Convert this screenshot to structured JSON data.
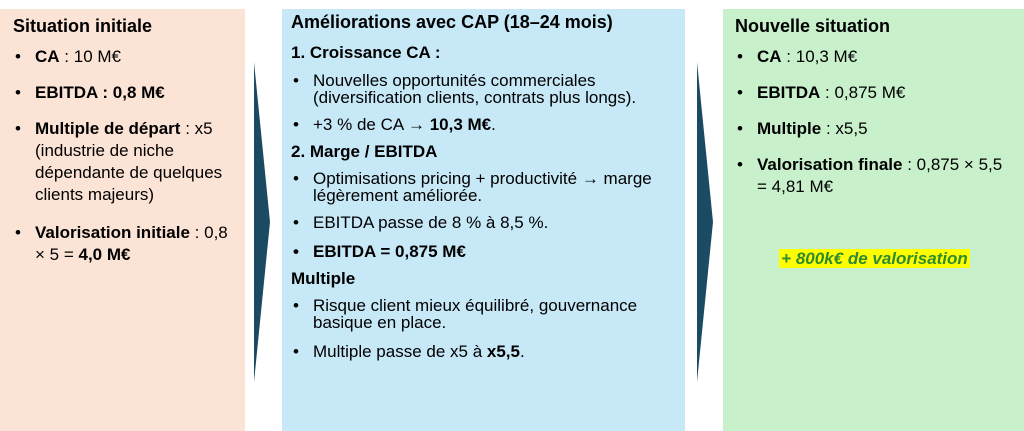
{
  "left": {
    "title": "Situation initiale",
    "items": [
      {
        "label": "CA",
        "sep": " : ",
        "value": "10 M€",
        "value_bold": false
      },
      {
        "label": "EBITDA  :",
        "sep": " ",
        "value": "0,8 M€",
        "value_bold": true
      },
      {
        "label": "Multiple de départ",
        "sep": " : ",
        "value": "x5 (industrie de niche dépendante de quelques clients majeurs)",
        "value_bold": false
      },
      {
        "label": "Valorisation initiale",
        "sep": " : ",
        "value": "0,8 × 5 =",
        "value2": "4,0 M€"
      }
    ]
  },
  "middle": {
    "title": "Améliorations avec CAP (18–24 mois)",
    "section1": {
      "title": "1. Croissance CA :",
      "item1": "Nouvelles opportunités commerciales (diversification clients, contrats plus longs).",
      "item2_prefix": "+3 % de CA → ",
      "item2_bold": "10,3 M€",
      "item2_suffix": "."
    },
    "section2": {
      "title": "2. Marge / EBITDA",
      "item1": "Optimisations pricing + productivité → marge légèrement améliorée.",
      "item2": "EBITDA passe de 8 % à 8,5 %.",
      "item3": "EBITDA = 0,875 M€"
    },
    "section3": {
      "title": "Multiple",
      "item1": "Risque client mieux équilibré, gouvernance basique en place.",
      "item2_prefix": "Multiple passe de x5 à ",
      "item2_bold": "x5,5",
      "item2_suffix": "."
    }
  },
  "right": {
    "title": "Nouvelle situation",
    "items": [
      {
        "label": "CA",
        "sep": " : ",
        "value": "10,3 M€"
      },
      {
        "label": "EBITDA",
        "sep": " : ",
        "value": "0,875 M€"
      },
      {
        "label": "Multiple",
        "sep": " : ",
        "value": "x5,5"
      },
      {
        "label": "Valorisation finale",
        "sep": " : ",
        "value": "0,875 × 5,5 = 4,81 M€"
      }
    ],
    "highlight": "+ 800k€ de valorisation"
  },
  "colors": {
    "left_bg": "#fbe3d6",
    "middle_bg": "#c6e8f7",
    "right_bg": "#c7f0cb",
    "arrow": "#1b4a63",
    "highlight_bg": "#ffff00",
    "highlight_text": "#2e8b2e"
  }
}
